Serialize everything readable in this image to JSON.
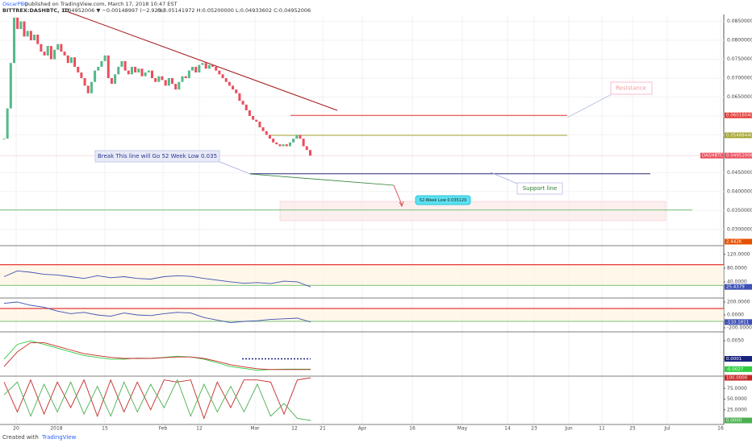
{
  "header": {
    "author": "OscarPBO",
    "published": "published on TradingView.com, March 17, 2018 10:47 EST",
    "symbol": "BITTREX:DASHBTC, 1D",
    "change": "0.04952006 ▼ −0.00148997 (−2.92%)",
    "ohlc": "O:0.05141972 H:0.05200000 L:0.04933602 C:0.04952006"
  },
  "footer": {
    "created": "Created with",
    "brand": "TradingView"
  },
  "x_labels": [
    "20",
    "2018",
    "15",
    "Feb",
    "12",
    "Mar",
    "12",
    "21",
    "Apr",
    "16",
    "May",
    "14",
    "23",
    "Jun",
    "11",
    "25",
    "Jul",
    "16"
  ],
  "chart_data": [
    {
      "type": "candlestick",
      "ylim": [
        0.0257,
        0.0864
      ],
      "yticks": [
        {
          "value": 0.085,
          "label": "0.08500000"
        },
        {
          "value": 0.08,
          "label": "0.08000000"
        },
        {
          "value": 0.075,
          "label": "0.07500000"
        },
        {
          "value": 0.07,
          "label": "0.07000000"
        },
        {
          "value": 0.065,
          "label": "0.06500000"
        },
        {
          "value": 0.06,
          "label": "0.06000000"
        },
        {
          "value": 0.055,
          "label": "0.05500000"
        },
        {
          "value": 0.045,
          "label": "0.04500000"
        },
        {
          "value": 0.04,
          "label": "0.04000000"
        },
        {
          "value": 0.035,
          "label": "0.03500000"
        },
        {
          "value": 0.03,
          "label": "0.03000000"
        }
      ],
      "grid": true,
      "series": [
        {
          "name": "DASHBTC",
          "up_color": "#53b987",
          "down_color": "#eb4d5c",
          "values": [
            0.054,
            0.062,
            0.074,
            0.086,
            0.083,
            0.085,
            0.081,
            0.0825,
            0.08,
            0.0815,
            0.079,
            0.077,
            0.076,
            0.0785,
            0.075,
            0.0775,
            0.079,
            0.077,
            0.076,
            0.074,
            0.0755,
            0.073,
            0.0715,
            0.07,
            0.068,
            0.066,
            0.069,
            0.072,
            0.073,
            0.0745,
            0.076,
            0.07,
            0.0685,
            0.071,
            0.073,
            0.0745,
            0.072,
            0.071,
            0.073,
            0.0715,
            0.0725,
            0.0705,
            0.0715,
            0.072,
            0.07,
            0.069,
            0.0705,
            0.0695,
            0.068,
            0.07,
            0.0685,
            0.067,
            0.069,
            0.0705,
            0.07,
            0.072,
            0.073,
            0.0715,
            0.0735,
            0.074,
            0.0725,
            0.0735,
            0.073,
            0.072,
            0.071,
            0.07,
            0.069,
            0.068,
            0.067,
            0.066,
            0.064,
            0.063,
            0.0615,
            0.06,
            0.059,
            0.0585,
            0.057,
            0.056,
            0.055,
            0.054,
            0.053,
            0.0525,
            0.052,
            0.0525,
            0.052,
            0.053,
            0.054,
            0.055,
            0.054,
            0.052,
            0.051,
            0.04952006
          ]
        }
      ],
      "price_badge": {
        "value": 0.04952006,
        "label": "0.04952006"
      },
      "levels": [
        {
          "value": 0.0601604,
          "label": "0.06016040",
          "color": "#e53935"
        },
        {
          "value": 0.0548844,
          "label": "0.05488440",
          "color": "#a5a532"
        }
      ],
      "support": {
        "value": 0.0447,
        "color": "#2a2a7a"
      },
      "low_line": {
        "value": 0.03512,
        "color": "#4caf50"
      },
      "volume_badge": {
        "value": 2442,
        "label": "2.442K"
      },
      "annotations": {
        "resistance": "Resistance",
        "break": "Break This line will Go 52 Week Low 0.035",
        "support": "Support line",
        "low": "52-Week Low 0.035120"
      }
    },
    {
      "type": "line",
      "ylim": [
        -7,
        143
      ],
      "yticks": [
        {
          "value": 120,
          "label": "120.0000"
        },
        {
          "value": 80,
          "label": "80.0000"
        },
        {
          "value": 40,
          "label": "40.0000"
        }
      ],
      "levels": [
        90,
        30
      ],
      "series": [
        {
          "color": "#3f51b5",
          "values": [
            55,
            72,
            68,
            62,
            60,
            55,
            50,
            58,
            52,
            55,
            50,
            48,
            55,
            58,
            56,
            50,
            45,
            40,
            36,
            38,
            35,
            42,
            40,
            25.4379
          ],
          "value_labels": [
            null,
            null,
            null,
            null,
            null,
            null,
            null,
            null,
            null,
            null,
            null,
            null,
            null,
            null,
            null,
            null,
            null,
            null,
            null,
            null,
            null,
            null,
            null,
            "25.4379"
          ]
        }
      ]
    },
    {
      "type": "line",
      "ylim": [
        -262,
        250
      ],
      "yticks": [
        {
          "value": 200,
          "label": "200.0000"
        },
        {
          "value": 0,
          "label": "0.0000"
        },
        {
          "value": -200,
          "label": "-200.0000"
        }
      ],
      "levels": [
        100,
        -100
      ],
      "series": [
        {
          "color": "#3f51b5",
          "values": [
            180,
            200,
            150,
            120,
            60,
            20,
            40,
            0,
            -20,
            30,
            0,
            -10,
            20,
            40,
            30,
            -40,
            -80,
            -120,
            -100,
            -90,
            -70,
            -60,
            -50,
            -110.1811
          ],
          "value_labels": [
            null,
            null,
            null,
            null,
            null,
            null,
            null,
            null,
            null,
            null,
            null,
            null,
            null,
            null,
            null,
            null,
            null,
            null,
            null,
            null,
            null,
            null,
            null,
            "-110.1811"
          ]
        }
      ]
    },
    {
      "type": "line",
      "ylim": [
        -0.0046,
        0.0072
      ],
      "yticks": [
        {
          "value": 0.005,
          "label": "0.0050"
        },
        {
          "value": 0,
          "label": "0.0000"
        }
      ],
      "series": [
        {
          "color": "#2ecc40",
          "values": [
            0.0,
            0.004,
            0.005,
            0.004,
            0.003,
            0.002,
            0.001,
            0.0005,
            0.0,
            0.0,
            0.0003,
            0.0002,
            0.0005,
            0.0008,
            0.0006,
            0.0,
            -0.001,
            -0.002,
            -0.0025,
            -0.003,
            -0.0028,
            -0.0027,
            -0.0027,
            -0.0027
          ],
          "value_labels": [
            null,
            null,
            null,
            null,
            null,
            null,
            null,
            null,
            null,
            null,
            null,
            null,
            null,
            null,
            null,
            null,
            null,
            null,
            null,
            null,
            null,
            null,
            null,
            "-0.0027"
          ]
        },
        {
          "color": "#c62828",
          "values": [
            -0.002,
            0.002,
            0.0045,
            0.0045,
            0.0035,
            0.0025,
            0.0015,
            0.001,
            0.0005,
            0.0002,
            0.0002,
            0.0002,
            0.0004,
            0.0006,
            0.0006,
            0.0002,
            -0.0006,
            -0.0015,
            -0.0021,
            -0.0026,
            -0.0028,
            -0.0028,
            -0.0028,
            -0.0028
          ]
        },
        {
          "color": "#1a237e",
          "values": [
            0.0001
          ],
          "value_labels": [
            "0.0001"
          ]
        }
      ]
    },
    {
      "type": "line",
      "ylim": [
        -9.4,
        101.9
      ],
      "yticks": [
        {
          "value": 75,
          "label": "75.0000"
        },
        {
          "value": 50,
          "label": "50.0000"
        },
        {
          "value": 25,
          "label": "25.0000"
        }
      ],
      "series": [
        {
          "color": "#c62828",
          "values": [
            90,
            20,
            95,
            15,
            90,
            30,
            95,
            10,
            95,
            20,
            90,
            25,
            95,
            90,
            95,
            5,
            90,
            30,
            95,
            95,
            90,
            15,
            95,
            100
          ],
          "value_labels": [
            null,
            null,
            null,
            null,
            null,
            null,
            null,
            null,
            null,
            null,
            null,
            null,
            null,
            null,
            null,
            null,
            null,
            null,
            null,
            null,
            null,
            null,
            null,
            "100.0000"
          ]
        },
        {
          "color": "#4caf50",
          "values": [
            60,
            90,
            10,
            85,
            20,
            90,
            15,
            80,
            10,
            90,
            20,
            85,
            30,
            95,
            10,
            85,
            20,
            80,
            20,
            85,
            10,
            40,
            5,
            0
          ],
          "value_labels": [
            null,
            null,
            null,
            null,
            null,
            null,
            null,
            null,
            null,
            null,
            null,
            null,
            null,
            null,
            null,
            null,
            null,
            null,
            null,
            null,
            null,
            null,
            null,
            "0.0000"
          ]
        }
      ]
    }
  ]
}
